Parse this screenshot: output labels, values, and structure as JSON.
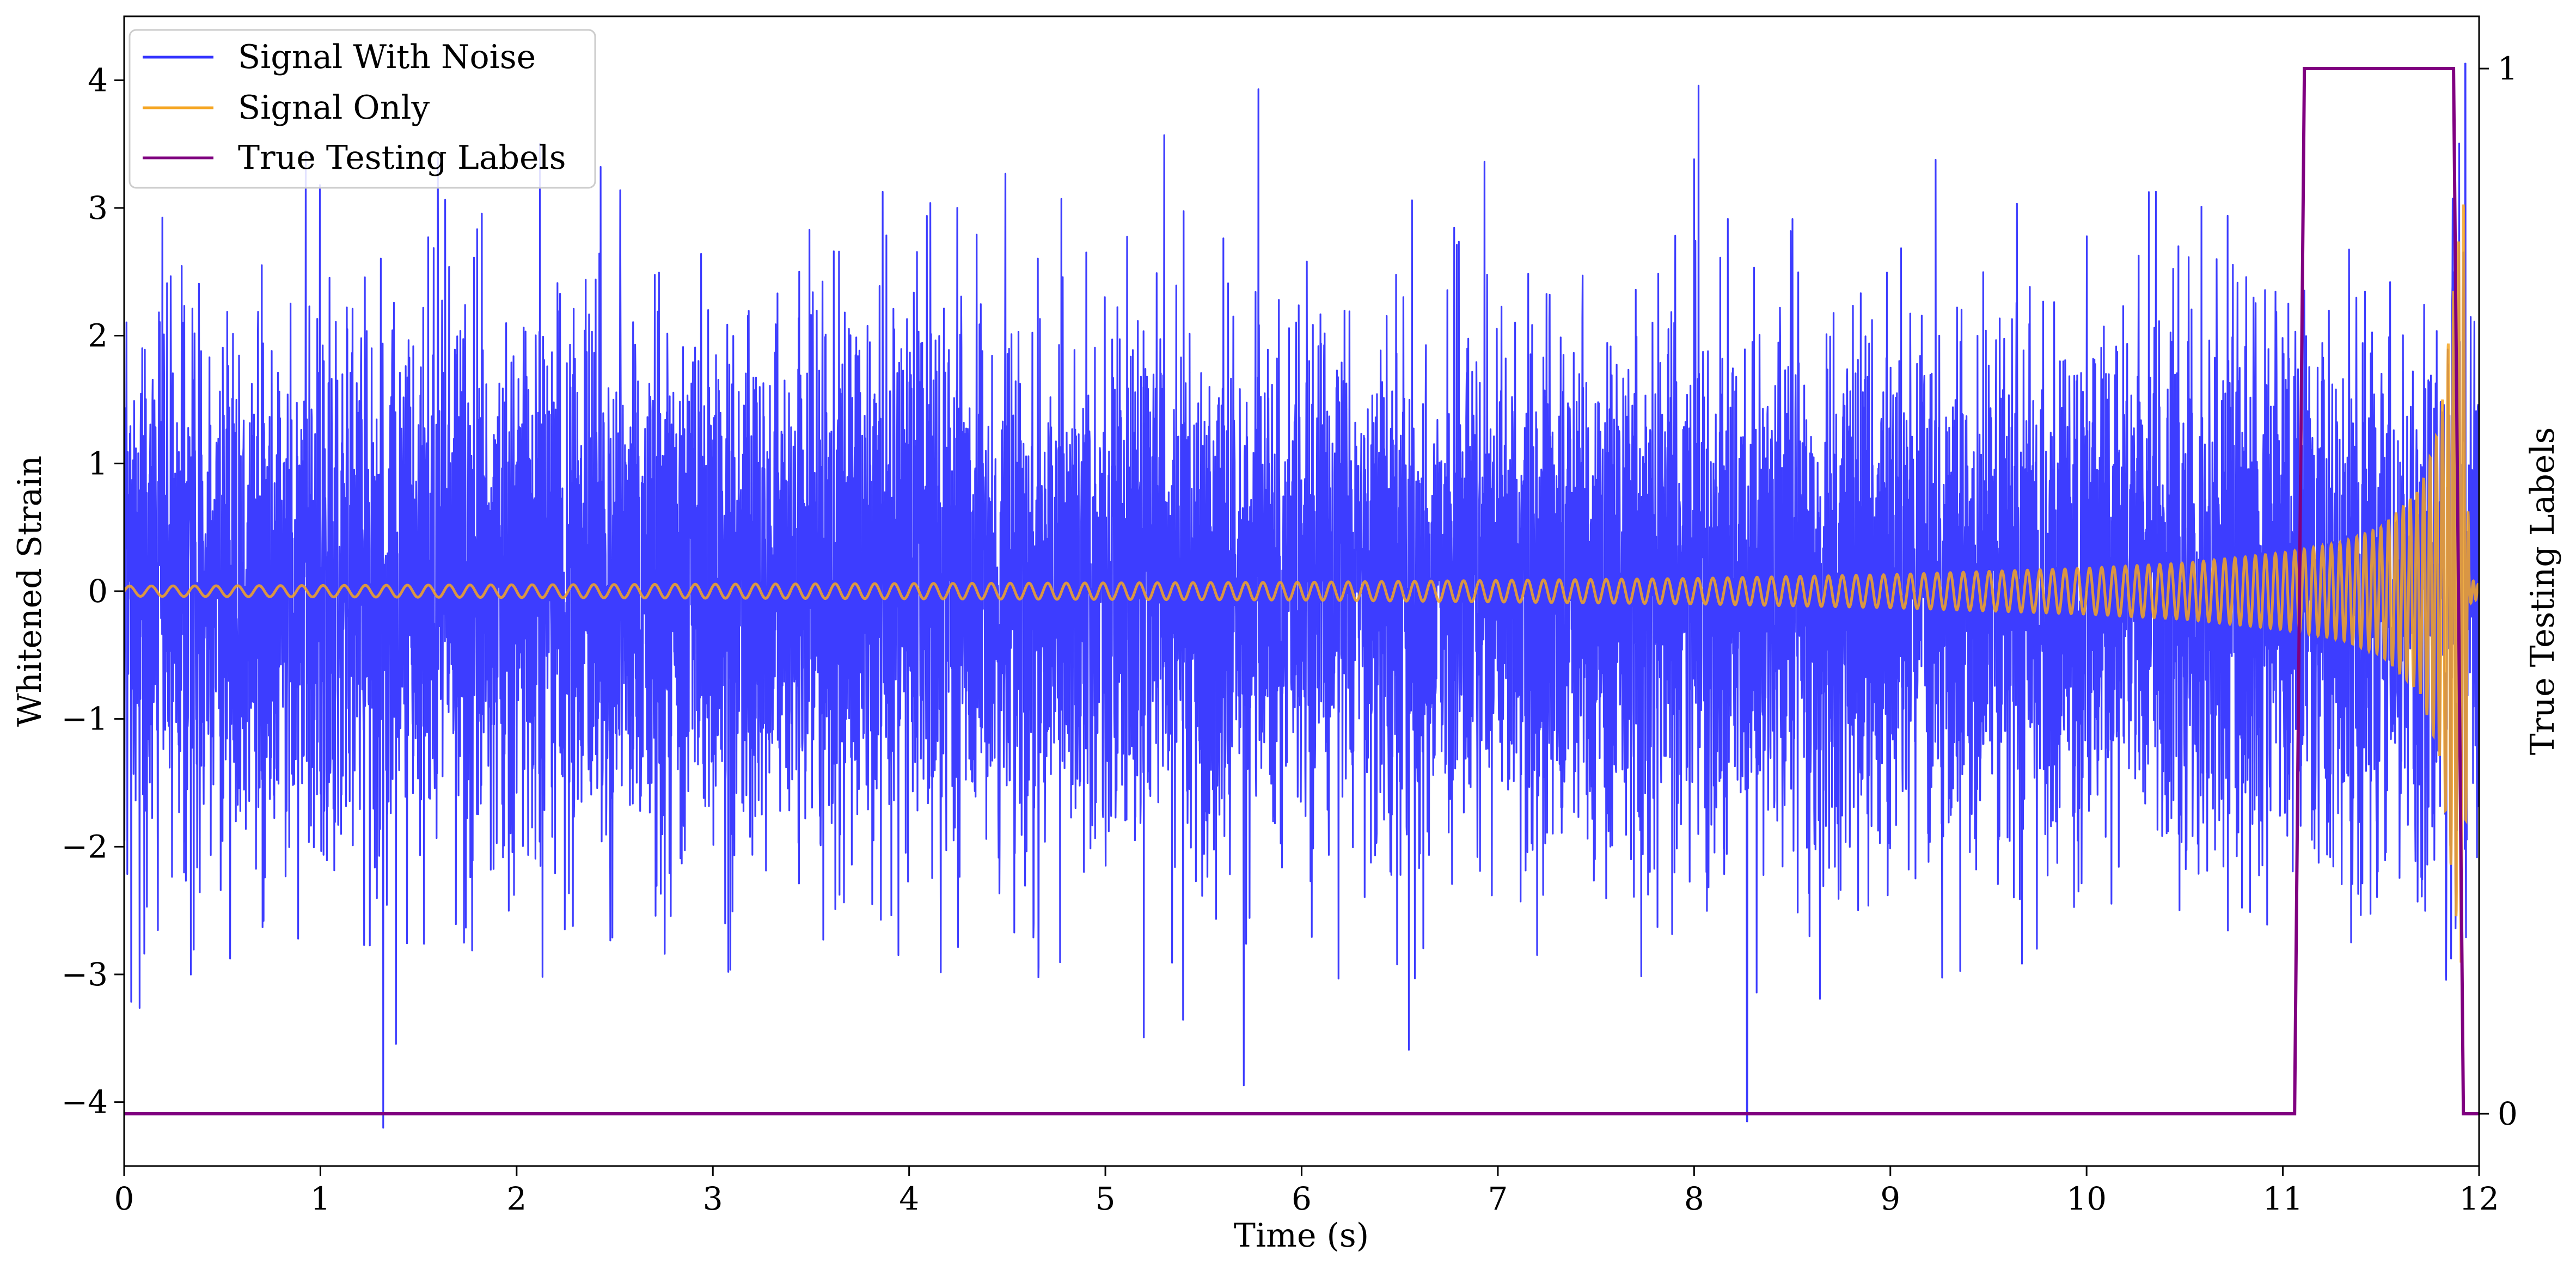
{
  "chart_data": {
    "type": "line",
    "xlabel": "Time (s)",
    "ylabel": "Whitened Strain",
    "y2label": "True Testing Labels",
    "xlim": [
      0,
      12
    ],
    "ylim": [
      -4.5,
      4.5
    ],
    "y2lim": [
      -0.05,
      1.05
    ],
    "x_ticks": [
      0,
      1,
      2,
      3,
      4,
      5,
      6,
      7,
      8,
      9,
      10,
      11,
      12
    ],
    "y_ticks": [
      -4,
      -3,
      -2,
      -1,
      0,
      1,
      2,
      3,
      4
    ],
    "y_tick_labels": [
      "−4",
      "−3",
      "−2",
      "−1",
      "0",
      "1",
      "2",
      "3",
      "4"
    ],
    "y2_ticks": [
      0,
      1
    ],
    "y2_tick_labels": [
      "0",
      "1"
    ],
    "grid": false,
    "legend_position": "top-left",
    "colors": {
      "signal_with_noise": "#3333ff",
      "signal_only": "#f5a623",
      "true_labels": "#800080"
    },
    "series": [
      {
        "name": "Signal With Noise",
        "axis": "left",
        "description_values": "noise approx normal, sd ~1, extremes about -4.2 to 4.2",
        "sampled_extremes": [
          {
            "x": 1.32,
            "y": -4.2
          },
          {
            "x": 5.78,
            "y": 3.93
          },
          {
            "x": 8.27,
            "y": -4.15
          },
          {
            "x": 11.93,
            "y": 4.13
          }
        ]
      },
      {
        "name": "Signal Only",
        "axis": "left",
        "amplitude_envelope": {
          "x": [
            0,
            2,
            4,
            6,
            8,
            9,
            10,
            10.5,
            11,
            11.3,
            11.5,
            11.7,
            11.8,
            11.88,
            11.92,
            11.95,
            12
          ],
          "amplitude": [
            0.04,
            0.05,
            0.06,
            0.07,
            0.1,
            0.13,
            0.18,
            0.22,
            0.3,
            0.38,
            0.5,
            0.8,
            1.3,
            2.5,
            3.1,
            0.1,
            0.05
          ]
        },
        "frequency_hz": {
          "x": [
            0,
            4,
            8,
            10,
            11,
            11.5,
            11.8,
            11.9
          ],
          "f": [
            9,
            10,
            13,
            16,
            20,
            25,
            32,
            40
          ]
        }
      },
      {
        "name": "True Testing Labels",
        "axis": "right",
        "x": [
          0,
          11.06,
          11.11,
          11.87,
          11.92,
          12
        ],
        "y": [
          0,
          0,
          1,
          1,
          0,
          0
        ]
      }
    ],
    "x_tick_labels": [
      "0",
      "1",
      "2",
      "3",
      "4",
      "5",
      "6",
      "7",
      "8",
      "9",
      "10",
      "11",
      "12"
    ]
  }
}
